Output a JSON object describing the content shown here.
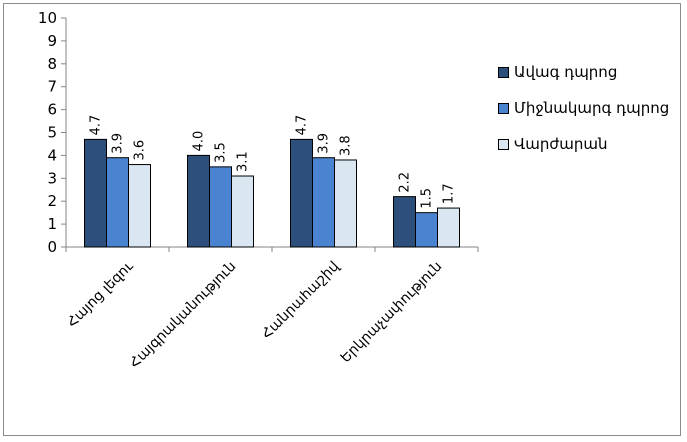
{
  "chart_data": {
    "type": "bar",
    "categories": [
      "Հայոց լեզու",
      "Հայգրականություն",
      "Հանրահաշիվ",
      "Երկրաչափություն"
    ],
    "series": [
      {
        "name": "Ավագ դպրոց",
        "values": [
          4.7,
          4.0,
          4.7,
          2.2
        ],
        "color": "#2d4f7b"
      },
      {
        "name": "Միջնակարգ դպրոց",
        "values": [
          3.9,
          3.5,
          3.9,
          1.5
        ],
        "color": "#4a83cf"
      },
      {
        "name": "Վարժարան",
        "values": [
          3.6,
          3.1,
          3.8,
          1.7
        ],
        "color": "#dbe6f3"
      }
    ],
    "ylim": [
      0,
      10
    ],
    "yticks": [
      0,
      1,
      2,
      3,
      4,
      5,
      6,
      7,
      8,
      9,
      10
    ],
    "data_labels": true,
    "label_decimals": 1,
    "grid": false,
    "legend_position": "right",
    "title": "",
    "xlabel": "",
    "ylabel": ""
  }
}
